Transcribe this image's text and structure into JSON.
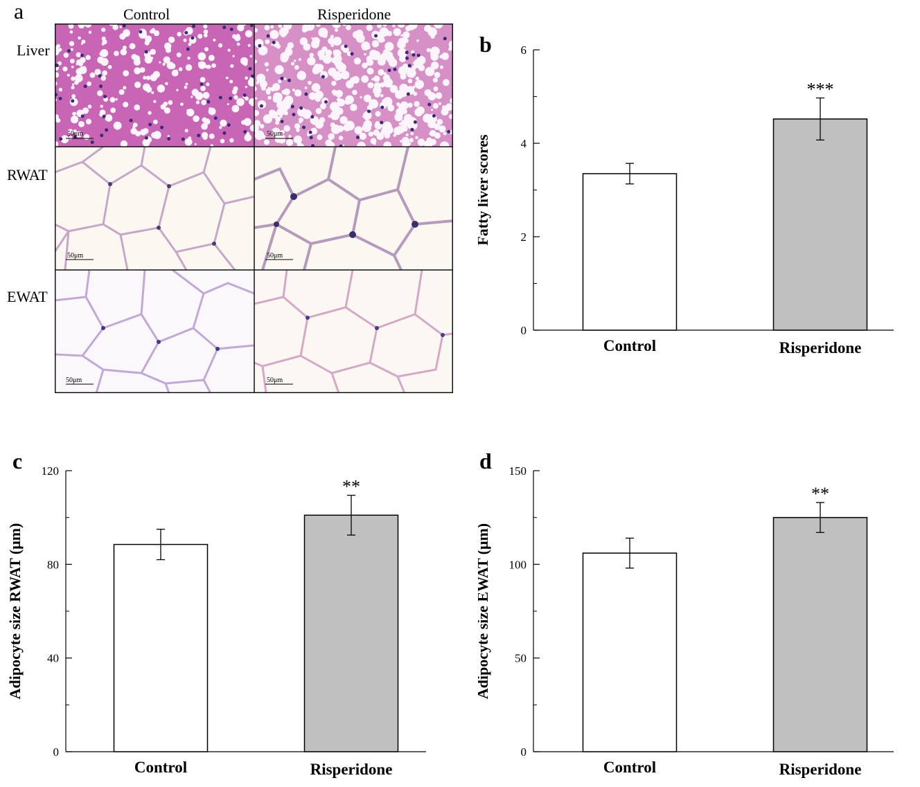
{
  "figure": {
    "panel_letters": [
      "a",
      "b",
      "c",
      "d"
    ],
    "histology": {
      "columns": [
        "Control",
        "Risperidone"
      ],
      "rows": [
        "Liver",
        "RWAT",
        "EWAT"
      ],
      "scale_bar_label": "50μm"
    }
  },
  "chart_data": [
    {
      "panel": "b",
      "type": "bar",
      "categories": [
        "Control",
        "Risperidone"
      ],
      "values": [
        3.35,
        4.52
      ],
      "errors": [
        0.22,
        0.45
      ],
      "significance": [
        "",
        "***"
      ],
      "ylabel": "Fatty liver scores",
      "xlabel": "",
      "ylim": [
        0,
        6
      ],
      "yticks": [
        "0",
        "2",
        "4",
        "6"
      ],
      "bar_colors": [
        "#ffffff",
        "#c0c0c0"
      ]
    },
    {
      "panel": "c",
      "type": "bar",
      "categories": [
        "Control",
        "Risperidone"
      ],
      "values": [
        88.5,
        101
      ],
      "errors": [
        6.5,
        8.5
      ],
      "significance": [
        "",
        "**"
      ],
      "ylabel": "Adipocyte size RWAT (μm)",
      "xlabel": "",
      "ylim": [
        0,
        120
      ],
      "yticks": [
        "0",
        "40",
        "80",
        "120"
      ],
      "bar_colors": [
        "#ffffff",
        "#c0c0c0"
      ]
    },
    {
      "panel": "d",
      "type": "bar",
      "categories": [
        "Control",
        "Risperidone"
      ],
      "values": [
        106,
        125
      ],
      "errors": [
        8,
        8
      ],
      "significance": [
        "",
        "**"
      ],
      "ylabel": "Adipocyte size EWAT (μm)",
      "xlabel": "",
      "ylim": [
        0,
        150
      ],
      "yticks": [
        "0",
        "50",
        "100",
        "150"
      ],
      "bar_colors": [
        "#ffffff",
        "#c0c0c0"
      ]
    }
  ]
}
